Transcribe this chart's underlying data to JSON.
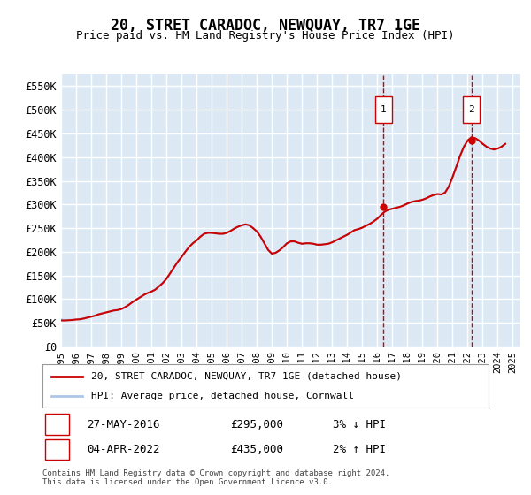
{
  "title": "20, STRET CARADOC, NEWQUAY, TR7 1GE",
  "subtitle": "Price paid vs. HM Land Registry's House Price Index (HPI)",
  "ylabel_ticks": [
    "£0",
    "£50K",
    "£100K",
    "£150K",
    "£200K",
    "£250K",
    "£300K",
    "£350K",
    "£400K",
    "£450K",
    "£500K",
    "£550K"
  ],
  "ytick_values": [
    0,
    50000,
    100000,
    150000,
    200000,
    250000,
    300000,
    350000,
    400000,
    450000,
    500000,
    550000
  ],
  "ylim": [
    0,
    575000
  ],
  "xlim_start": 1995.0,
  "xlim_end": 2025.5,
  "background_color": "#dce9f5",
  "plot_bg_color": "#dce9f5",
  "grid_color": "#ffffff",
  "line1_color": "#cc0000",
  "line2_color": "#aec6e8",
  "transaction1_date": 2016.41,
  "transaction1_price": 295000,
  "transaction2_date": 2022.25,
  "transaction2_price": 435000,
  "legend1": "20, STRET CARADOC, NEWQUAY, TR7 1GE (detached house)",
  "legend2": "HPI: Average price, detached house, Cornwall",
  "annotation1_label": "1",
  "annotation1_date": "27-MAY-2016",
  "annotation1_price": "£295,000",
  "annotation1_hpi": "3% ↓ HPI",
  "annotation2_label": "2",
  "annotation2_date": "04-APR-2022",
  "annotation2_price": "£435,000",
  "annotation2_hpi": "2% ↑ HPI",
  "footer": "Contains HM Land Registry data © Crown copyright and database right 2024.\nThis data is licensed under the Open Government Licence v3.0.",
  "hpi_data": {
    "years": [
      1995.0,
      1995.25,
      1995.5,
      1995.75,
      1996.0,
      1996.25,
      1996.5,
      1996.75,
      1997.0,
      1997.25,
      1997.5,
      1997.75,
      1998.0,
      1998.25,
      1998.5,
      1998.75,
      1999.0,
      1999.25,
      1999.5,
      1999.75,
      2000.0,
      2000.25,
      2000.5,
      2000.75,
      2001.0,
      2001.25,
      2001.5,
      2001.75,
      2002.0,
      2002.25,
      2002.5,
      2002.75,
      2003.0,
      2003.25,
      2003.5,
      2003.75,
      2004.0,
      2004.25,
      2004.5,
      2004.75,
      2005.0,
      2005.25,
      2005.5,
      2005.75,
      2006.0,
      2006.25,
      2006.5,
      2006.75,
      2007.0,
      2007.25,
      2007.5,
      2007.75,
      2008.0,
      2008.25,
      2008.5,
      2008.75,
      2009.0,
      2009.25,
      2009.5,
      2009.75,
      2010.0,
      2010.25,
      2010.5,
      2010.75,
      2011.0,
      2011.25,
      2011.5,
      2011.75,
      2012.0,
      2012.25,
      2012.5,
      2012.75,
      2013.0,
      2013.25,
      2013.5,
      2013.75,
      2014.0,
      2014.25,
      2014.5,
      2014.75,
      2015.0,
      2015.25,
      2015.5,
      2015.75,
      2016.0,
      2016.25,
      2016.5,
      2016.75,
      2017.0,
      2017.25,
      2017.5,
      2017.75,
      2018.0,
      2018.25,
      2018.5,
      2018.75,
      2019.0,
      2019.25,
      2019.5,
      2019.75,
      2020.0,
      2020.25,
      2020.5,
      2020.75,
      2021.0,
      2021.25,
      2021.5,
      2021.75,
      2022.0,
      2022.25,
      2022.5,
      2022.75,
      2023.0,
      2023.25,
      2023.5,
      2023.75,
      2024.0,
      2024.25,
      2024.5
    ],
    "values": [
      57000,
      56000,
      56000,
      56500,
      57000,
      57500,
      59000,
      61000,
      63000,
      65000,
      68000,
      70000,
      72000,
      74000,
      76000,
      77000,
      79000,
      83000,
      88000,
      94000,
      99000,
      104000,
      109000,
      113000,
      116000,
      120000,
      127000,
      134000,
      143000,
      155000,
      167000,
      179000,
      189000,
      200000,
      210000,
      218000,
      224000,
      232000,
      238000,
      240000,
      240000,
      239000,
      238000,
      238000,
      240000,
      244000,
      249000,
      253000,
      256000,
      258000,
      256000,
      250000,
      243000,
      232000,
      218000,
      204000,
      196000,
      198000,
      203000,
      210000,
      218000,
      222000,
      222000,
      219000,
      217000,
      218000,
      218000,
      217000,
      215000,
      215000,
      216000,
      217000,
      220000,
      224000,
      228000,
      232000,
      236000,
      241000,
      246000,
      248000,
      251000,
      255000,
      259000,
      264000,
      270000,
      278000,
      285000,
      289000,
      291000,
      293000,
      295000,
      298000,
      302000,
      305000,
      307000,
      308000,
      310000,
      313000,
      317000,
      320000,
      322000,
      321000,
      325000,
      338000,
      358000,
      380000,
      403000,
      422000,
      435000,
      442000,
      440000,
      435000,
      428000,
      422000,
      418000,
      416000,
      418000,
      422000,
      428000
    ]
  },
  "price_data": {
    "years": [
      1995.0,
      1995.25,
      1995.5,
      1995.75,
      1996.0,
      1996.25,
      1996.5,
      1996.75,
      1997.0,
      1997.25,
      1997.5,
      1997.75,
      1998.0,
      1998.25,
      1998.5,
      1998.75,
      1999.0,
      1999.25,
      1999.5,
      1999.75,
      2000.0,
      2000.25,
      2000.5,
      2000.75,
      2001.0,
      2001.25,
      2001.5,
      2001.75,
      2002.0,
      2002.25,
      2002.5,
      2002.75,
      2003.0,
      2003.25,
      2003.5,
      2003.75,
      2004.0,
      2004.25,
      2004.5,
      2004.75,
      2005.0,
      2005.25,
      2005.5,
      2005.75,
      2006.0,
      2006.25,
      2006.5,
      2006.75,
      2007.0,
      2007.25,
      2007.5,
      2007.75,
      2008.0,
      2008.25,
      2008.5,
      2008.75,
      2009.0,
      2009.25,
      2009.5,
      2009.75,
      2010.0,
      2010.25,
      2010.5,
      2010.75,
      2011.0,
      2011.25,
      2011.5,
      2011.75,
      2012.0,
      2012.25,
      2012.5,
      2012.75,
      2013.0,
      2013.25,
      2013.5,
      2013.75,
      2014.0,
      2014.25,
      2014.5,
      2014.75,
      2015.0,
      2015.25,
      2015.5,
      2015.75,
      2016.0,
      2016.25,
      2016.5,
      2016.75,
      2017.0,
      2017.25,
      2017.5,
      2017.75,
      2018.0,
      2018.25,
      2018.5,
      2018.75,
      2019.0,
      2019.25,
      2019.5,
      2019.75,
      2020.0,
      2020.25,
      2020.5,
      2020.75,
      2021.0,
      2021.25,
      2021.5,
      2021.75,
      2022.0,
      2022.25,
      2022.5,
      2022.75,
      2023.0,
      2023.25,
      2023.5,
      2023.75,
      2024.0,
      2024.25,
      2024.5
    ],
    "values": [
      55000,
      55000,
      55500,
      56000,
      57000,
      57500,
      59000,
      61000,
      63000,
      65000,
      68000,
      70000,
      72000,
      74000,
      76000,
      77000,
      79000,
      83000,
      88000,
      94000,
      99000,
      104000,
      109000,
      113000,
      116000,
      120000,
      127000,
      134000,
      143000,
      155000,
      167000,
      179000,
      189000,
      200000,
      210000,
      218000,
      224000,
      232000,
      238000,
      240000,
      240000,
      239000,
      238000,
      238000,
      240000,
      244000,
      249000,
      253000,
      256000,
      258000,
      256000,
      250000,
      243000,
      232000,
      218000,
      204000,
      196000,
      198000,
      203000,
      210000,
      218000,
      222000,
      222000,
      219000,
      217000,
      218000,
      218000,
      217000,
      215000,
      215000,
      216000,
      217000,
      220000,
      224000,
      228000,
      232000,
      236000,
      241000,
      246000,
      248000,
      251000,
      255000,
      259000,
      264000,
      270000,
      278000,
      285000,
      289000,
      291000,
      293000,
      295000,
      298000,
      302000,
      305000,
      307000,
      308000,
      310000,
      313000,
      317000,
      320000,
      322000,
      321000,
      325000,
      338000,
      358000,
      380000,
      403000,
      422000,
      435000,
      442000,
      440000,
      435000,
      428000,
      422000,
      418000,
      416000,
      418000,
      422000,
      428000
    ]
  }
}
